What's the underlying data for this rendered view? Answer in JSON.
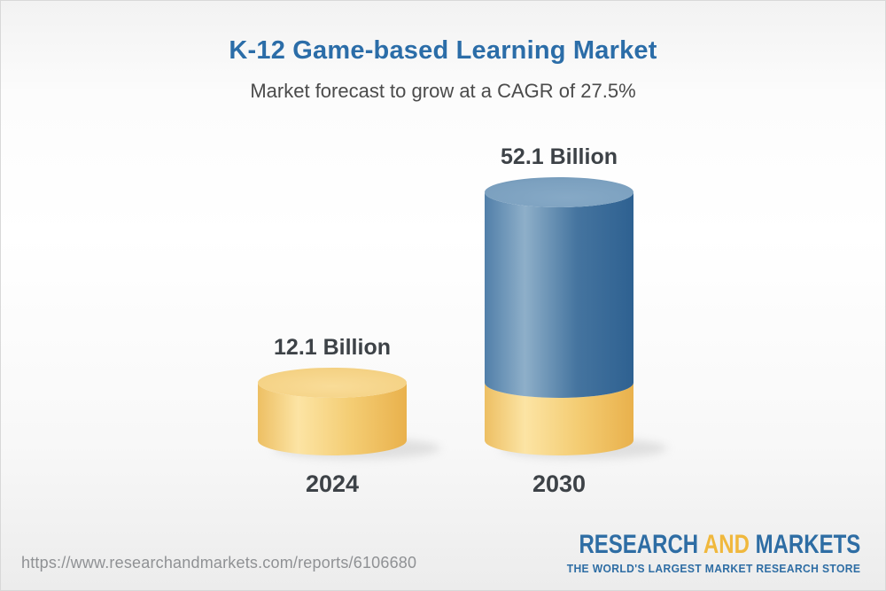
{
  "header": {
    "title": "K-12 Game-based Learning Market",
    "subtitle": "Market forecast to grow at a CAGR of 27.5%"
  },
  "chart_data": {
    "type": "bar",
    "subtype": "3d-cylinder",
    "title": "K-12 Game-based Learning Market",
    "subtitle": "Market forecast to grow at a CAGR of 27.5%",
    "unit": "Billion",
    "cagr_percent": 27.5,
    "categories": [
      "2024",
      "2030"
    ],
    "values": [
      12.1,
      52.1
    ],
    "legend": "none",
    "grid": false,
    "axes": "hidden",
    "bars": [
      {
        "category": "2024",
        "label": "12.1 Billion",
        "total": 12.1,
        "segments": [
          {
            "value": 12.1,
            "palette": "gold"
          }
        ]
      },
      {
        "category": "2030",
        "label": "52.1 Billion",
        "total": 52.1,
        "segments": [
          {
            "value": 12.1,
            "palette": "gold"
          },
          {
            "value": 40.0,
            "palette": "blue"
          }
        ]
      }
    ],
    "colors": {
      "gold": "#f0c468",
      "blue": "#4779a7",
      "label_text": "#3d4247"
    }
  },
  "footer": {
    "url": "https://www.researchandmarkets.com/reports/6106680",
    "logo": {
      "research": "RESEARCH",
      "and": "AND",
      "markets": "MARKETS",
      "tagline": "THE WORLD'S LARGEST MARKET RESEARCH STORE"
    }
  }
}
